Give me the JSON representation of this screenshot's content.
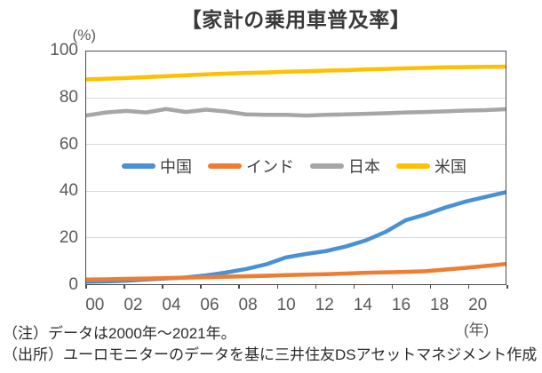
{
  "title": "【家計の乗用車普及率】",
  "y_axis": {
    "unit": "(%)",
    "ticks": [
      0,
      20,
      40,
      60,
      80,
      100
    ]
  },
  "x_axis": {
    "unit": "(年)",
    "tick_labels": [
      "00",
      "02",
      "04",
      "06",
      "08",
      "10",
      "12",
      "14",
      "16",
      "18",
      "20"
    ]
  },
  "notes": {
    "note1": "（注）データは2000年～2021年。",
    "note2": "（出所）ユーロモニターのデータを基に三井住友DSアセットマネジメント作成"
  },
  "chart_data": {
    "type": "line",
    "title": "【家計の乗用車普及率】",
    "xlabel": "年",
    "ylabel": "%",
    "ylim": [
      0,
      100
    ],
    "grid": "horizontal",
    "legend_position": "inside-center-left",
    "x": [
      2000,
      2001,
      2002,
      2003,
      2004,
      2005,
      2006,
      2007,
      2008,
      2009,
      2010,
      2011,
      2012,
      2013,
      2014,
      2015,
      2016,
      2017,
      2018,
      2019,
      2020,
      2021
    ],
    "series": [
      {
        "name": "中国",
        "color": "#4A90D5",
        "values": [
          1.0,
          1.2,
          1.5,
          2.0,
          2.4,
          2.9,
          3.8,
          5.0,
          6.5,
          8.5,
          11.5,
          13.0,
          14.2,
          16.2,
          18.8,
          22.5,
          27.5,
          30.0,
          33.0,
          35.5,
          37.5,
          39.5
        ]
      },
      {
        "name": "インド",
        "color": "#ED7D31",
        "values": [
          2.0,
          2.1,
          2.3,
          2.4,
          2.6,
          2.8,
          3.0,
          3.2,
          3.4,
          3.6,
          3.9,
          4.1,
          4.3,
          4.6,
          4.9,
          5.1,
          5.3,
          5.6,
          6.3,
          7.0,
          7.8,
          8.7
        ]
      },
      {
        "name": "日本",
        "color": "#A6A6A6",
        "values": [
          72.5,
          73.8,
          74.5,
          73.8,
          75.3,
          74.0,
          75.0,
          74.2,
          73.0,
          72.8,
          72.8,
          72.5,
          72.8,
          73.0,
          73.2,
          73.5,
          73.8,
          74.0,
          74.3,
          74.6,
          74.8,
          75.2
        ]
      },
      {
        "name": "米国",
        "color": "#FFC000",
        "values": [
          88.0,
          88.3,
          88.6,
          89.0,
          89.4,
          89.8,
          90.2,
          90.5,
          90.8,
          91.0,
          91.3,
          91.5,
          91.8,
          92.0,
          92.3,
          92.5,
          92.8,
          93.0,
          93.2,
          93.3,
          93.4,
          93.5
        ]
      }
    ]
  }
}
